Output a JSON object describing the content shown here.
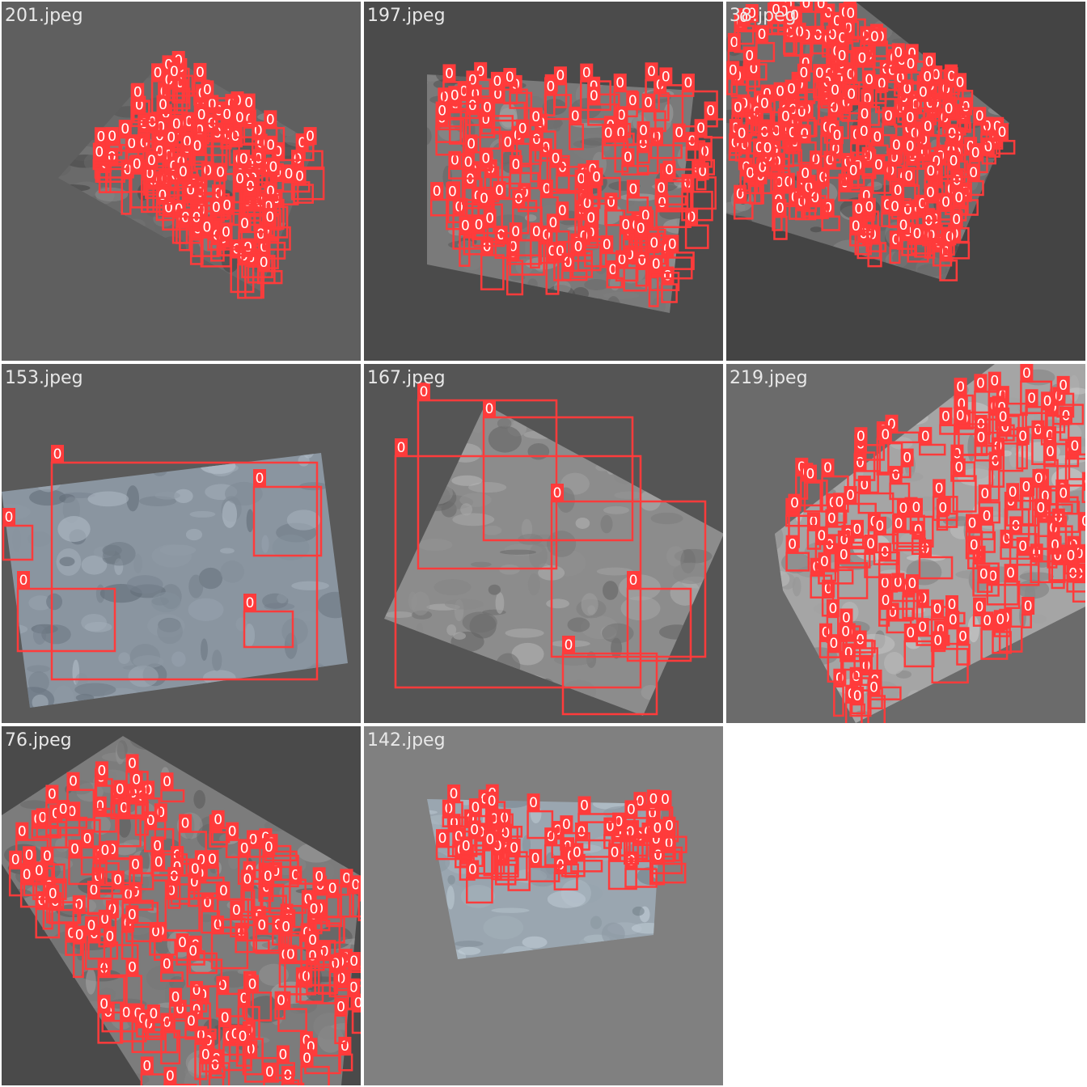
{
  "tiles": [
    {
      "name": "201.jpeg",
      "class_label": "0",
      "bg": "#5f5f5f",
      "rock": "#6a6a6a",
      "box_count": 140
    },
    {
      "name": "197.jpeg",
      "class_label": "0",
      "bg": "#4b4b4b",
      "rock": "#7a7a7a",
      "box_count": 130
    },
    {
      "name": "38.jpeg",
      "class_label": "0",
      "bg": "#444444",
      "rock": "#6e6e6e",
      "box_count": 260
    },
    {
      "name": "153.jpeg",
      "class_label": "0",
      "bg": "#5a5a5a",
      "rock": "#8a95a0",
      "box_count": 7
    },
    {
      "name": "167.jpeg",
      "class_label": "0",
      "bg": "#555555",
      "rock": "#8c8c8c",
      "box_count": 7
    },
    {
      "name": "219.jpeg",
      "class_label": "0",
      "bg": "#6b6b6b",
      "rock": "#a5a5a5",
      "box_count": 150
    },
    {
      "name": "76.jpeg",
      "class_label": "0",
      "bg": "#4a4a4a",
      "rock": "#7c7c7c",
      "box_count": 170
    },
    {
      "name": "142.jpeg",
      "class_label": "0",
      "bg": "#808080",
      "rock": "#9aa6b0",
      "box_count": 60
    }
  ],
  "colors": {
    "box": "#ff3b3b",
    "label_bg": "#ff3b3b",
    "label_text": "#ffffff"
  }
}
